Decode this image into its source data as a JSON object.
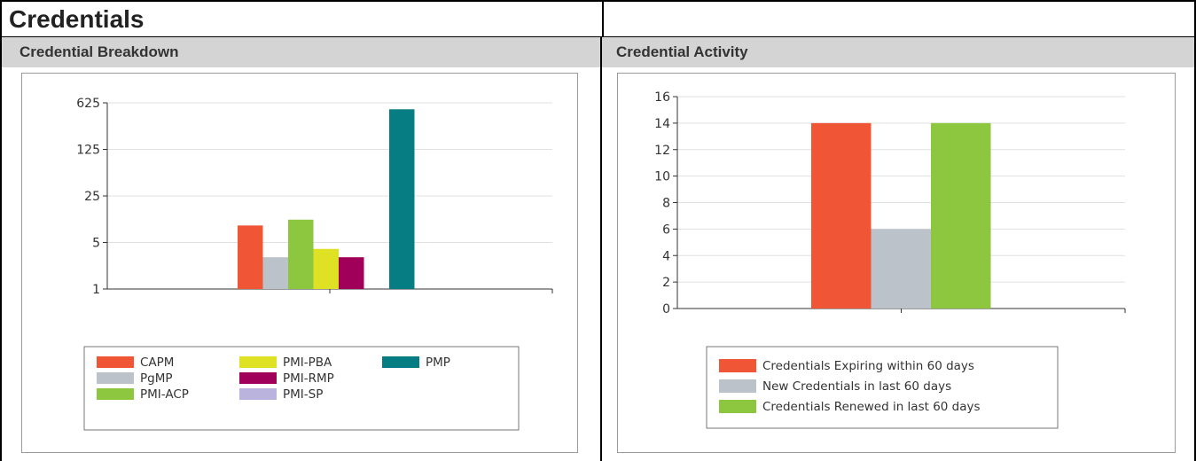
{
  "page": {
    "title": "Credentials"
  },
  "panels": {
    "left": {
      "header": "Credential Breakdown"
    },
    "right": {
      "header": "Credential Activity"
    }
  },
  "chart_data": [
    {
      "type": "bar",
      "y_scale": "log5",
      "ylim": [
        1,
        625
      ],
      "y_ticks": [
        "625",
        "125",
        "25",
        "5",
        "1"
      ],
      "grid": true,
      "legend_position": "bottom",
      "series": [
        {
          "name": "CAPM",
          "value": 9,
          "color": "#f05536"
        },
        {
          "name": "PgMP",
          "value": 3,
          "color": "#bcc2c9"
        },
        {
          "name": "PMI-ACP",
          "value": 11,
          "color": "#8dc63f"
        },
        {
          "name": "PMI-PBA",
          "value": 4,
          "color": "#dfe224"
        },
        {
          "name": "PMI-RMP",
          "value": 3,
          "color": "#a1005a"
        },
        {
          "name": "PMI-SP",
          "value": 0,
          "color": "#b9b3dd"
        },
        {
          "name": "PMP",
          "value": 500,
          "color": "#057d83"
        }
      ]
    },
    {
      "type": "bar",
      "ylim": [
        0,
        16
      ],
      "y_ticks": [
        "16",
        "14",
        "12",
        "10",
        "8",
        "6",
        "4",
        "2",
        "0"
      ],
      "grid": true,
      "legend_position": "bottom",
      "series": [
        {
          "name": "Credentials Expiring within 60 days",
          "value": 14,
          "color": "#f05536"
        },
        {
          "name": "New Credentials in last 60 days",
          "value": 6,
          "color": "#bcc2c9"
        },
        {
          "name": "Credentials Renewed in last 60 days",
          "value": 14,
          "color": "#8dc63f"
        }
      ]
    }
  ]
}
